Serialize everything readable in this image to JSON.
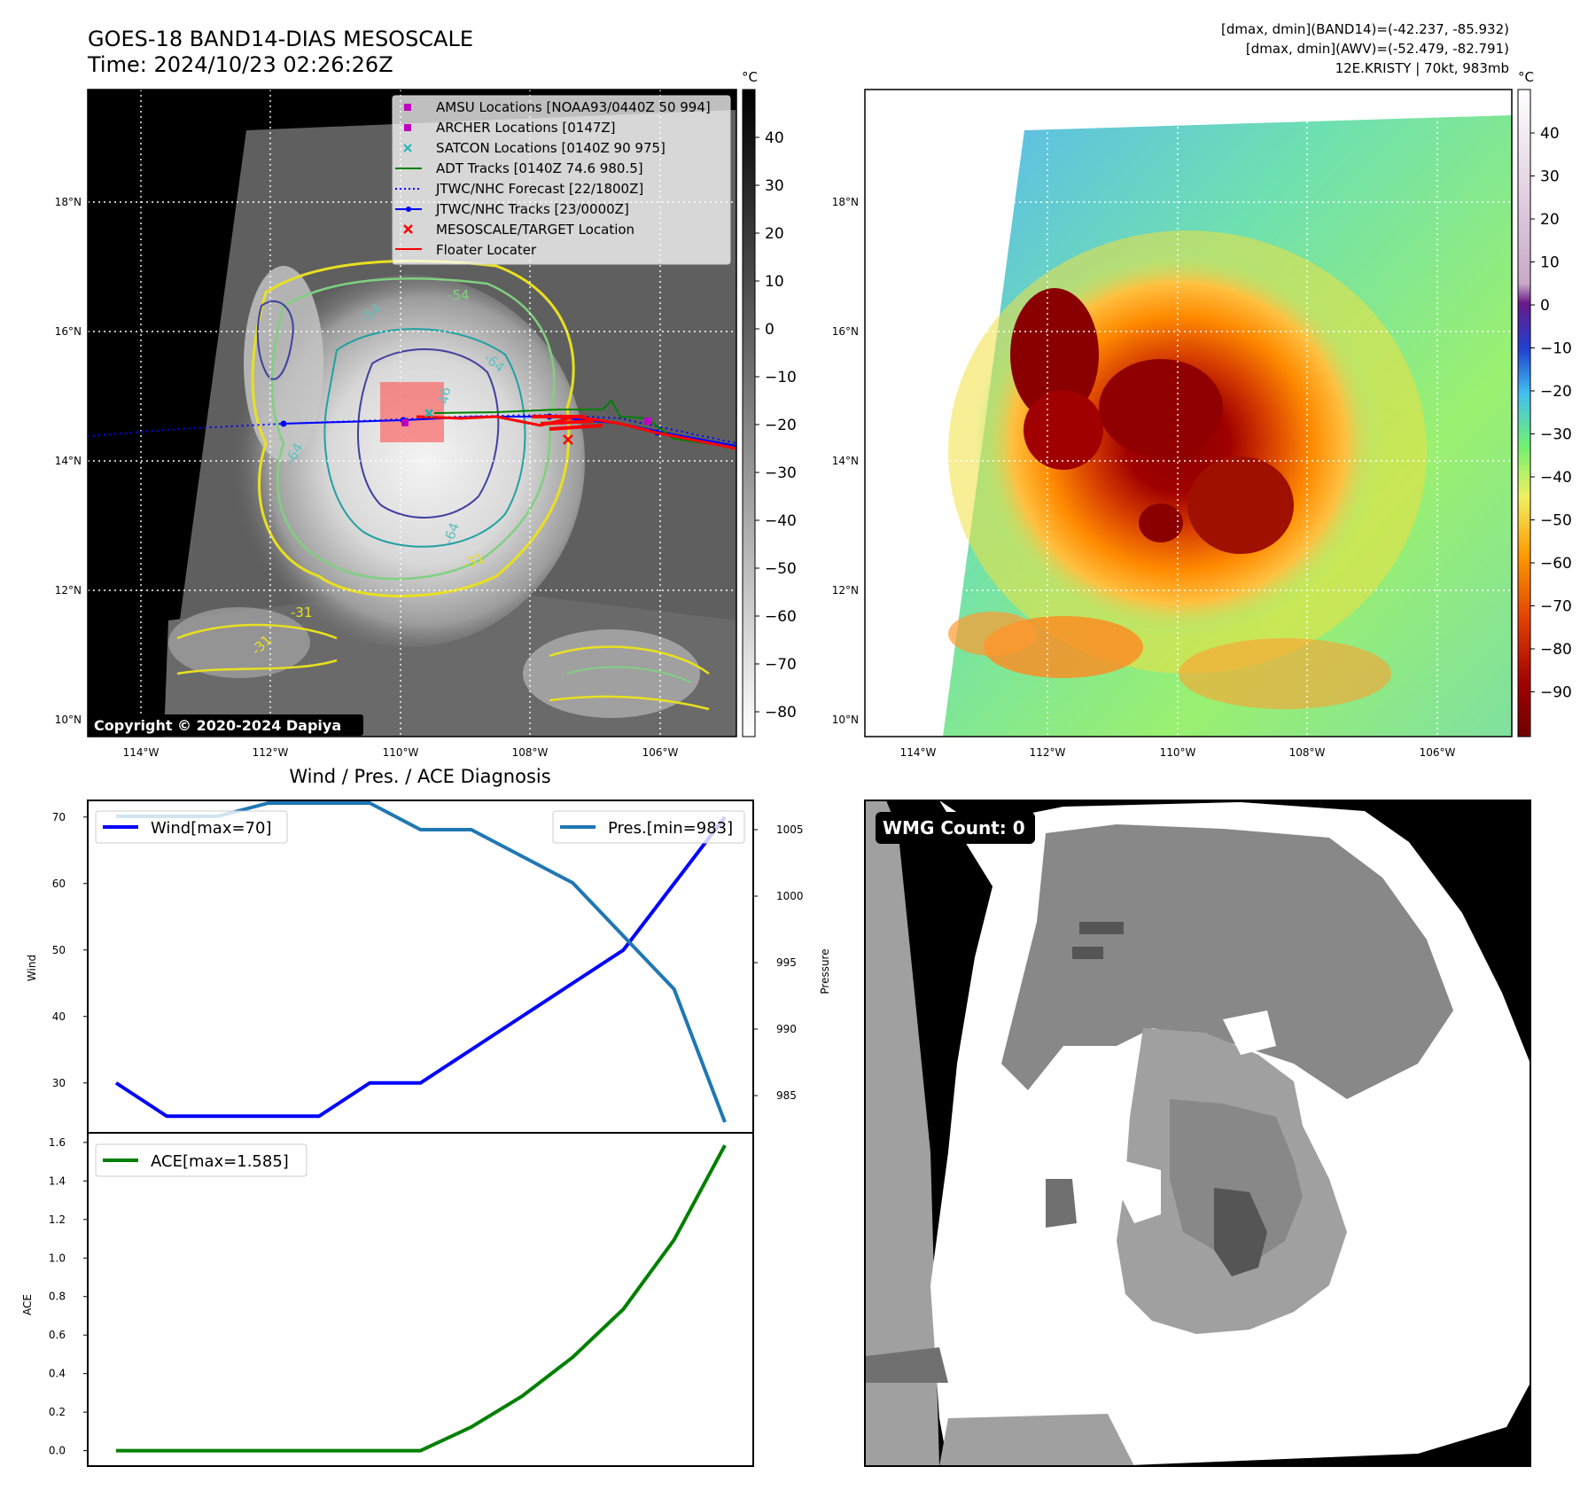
{
  "figure": {
    "title_line1": "GOES-18 BAND14-DIAS MESOSCALE",
    "title_line2": "Time: 2024/10/23 02:26:26Z",
    "stats_line1": "[dmax, dmin](BAND14)=(-42.237, -85.932)",
    "stats_line2": "[dmax, dmin](AWV)=(-52.479, -82.791)",
    "stats_line3": "12E.KRISTY | 70kt, 983mb",
    "copyright": "Copyright © 2020-2024 Dapiya"
  },
  "map_axes": {
    "lat_labels": [
      "18°N",
      "16°N",
      "14°N",
      "12°N",
      "10°N"
    ],
    "lon_labels": [
      "114°W",
      "112°W",
      "110°W",
      "108°W",
      "106°W"
    ]
  },
  "contour_labels": [
    "-54",
    "-64",
    "-54",
    "-64",
    "-31",
    "-64",
    "-46",
    "-31",
    "-31"
  ],
  "legend": {
    "items": [
      {
        "label": "AMSU Locations [NOAA93/0440Z 50 994]",
        "marker": "square",
        "color": "#c000c0"
      },
      {
        "label": "ARCHER Locations [0147Z]",
        "marker": "square",
        "color": "#c000c0"
      },
      {
        "label": "SATCON Locations [0140Z 90 975]",
        "marker": "x",
        "color": "#1fb5b5"
      },
      {
        "label": "ADT Tracks [0140Z 74.6 980.5]",
        "marker": "line",
        "color": "#008000"
      },
      {
        "label": "JTWC/NHC Forecast [22/1800Z]",
        "marker": "dotted",
        "color": "#0000ff"
      },
      {
        "label": "JTWC/NHC Tracks [23/0000Z]",
        "marker": "line-dot",
        "color": "#0000ff"
      },
      {
        "label": "MESOSCALE/TARGET Location",
        "marker": "x",
        "color": "#ff0000"
      },
      {
        "label": "Floater Locater",
        "marker": "line",
        "color": "#ff0000"
      }
    ]
  },
  "colorbar_band14": {
    "unit": "°C",
    "ticks": [
      "40",
      "30",
      "20",
      "10",
      "0",
      "−10",
      "−20",
      "−30",
      "−40",
      "−50",
      "−60",
      "−70",
      "−80"
    ]
  },
  "colorbar_awv": {
    "unit": "°C",
    "ticks": [
      "40",
      "30",
      "20",
      "10",
      "0",
      "−10",
      "−20",
      "−30",
      "−40",
      "−50",
      "−60",
      "−70",
      "−80",
      "−90"
    ]
  },
  "wmg": {
    "label": "WMG Count: 0"
  },
  "chart_data": [
    {
      "type": "line",
      "title": "Wind / Pres. / ACE Diagnosis",
      "ylabel": "Wind",
      "ylabel_right": "Pressure",
      "ylim": [
        22.5,
        72.5
      ],
      "ylim_right": [
        982.2,
        1007.2
      ],
      "yticks": [
        30,
        40,
        50,
        60,
        70
      ],
      "yticks_right": [
        985,
        990,
        995,
        1000,
        1005
      ],
      "x": [
        0,
        1,
        2,
        3,
        4,
        5,
        6,
        7,
        8,
        9,
        10,
        11,
        12
      ],
      "series": [
        {
          "name": "Wind[max=70]",
          "axis": "left",
          "color": "#0000ff",
          "values": [
            30,
            25,
            25,
            25,
            25,
            30,
            30,
            35,
            40,
            45,
            50,
            60,
            70
          ]
        },
        {
          "name": "Pres.[min=983]",
          "axis": "right",
          "color": "#1f77b4",
          "values": [
            1006,
            1006,
            1006,
            1007,
            1007,
            1007,
            1005,
            1005,
            1003,
            1001,
            997,
            993,
            983
          ]
        }
      ]
    },
    {
      "type": "line",
      "ylabel": "ACE",
      "ylim": [
        -0.08,
        1.65
      ],
      "yticks": [
        "0.0",
        "0.2",
        "0.4",
        "0.6",
        "0.8",
        "1.0",
        "1.2",
        "1.4",
        "1.6"
      ],
      "x": [
        0,
        1,
        2,
        3,
        4,
        5,
        6,
        7,
        8,
        9,
        10,
        11,
        12
      ],
      "series": [
        {
          "name": "ACE[max=1.585]",
          "color": "#008000",
          "values": [
            0,
            0,
            0,
            0,
            0,
            0,
            0,
            0.1225,
            0.2825,
            0.485,
            0.735,
            1.095,
            1.585
          ]
        }
      ]
    }
  ]
}
